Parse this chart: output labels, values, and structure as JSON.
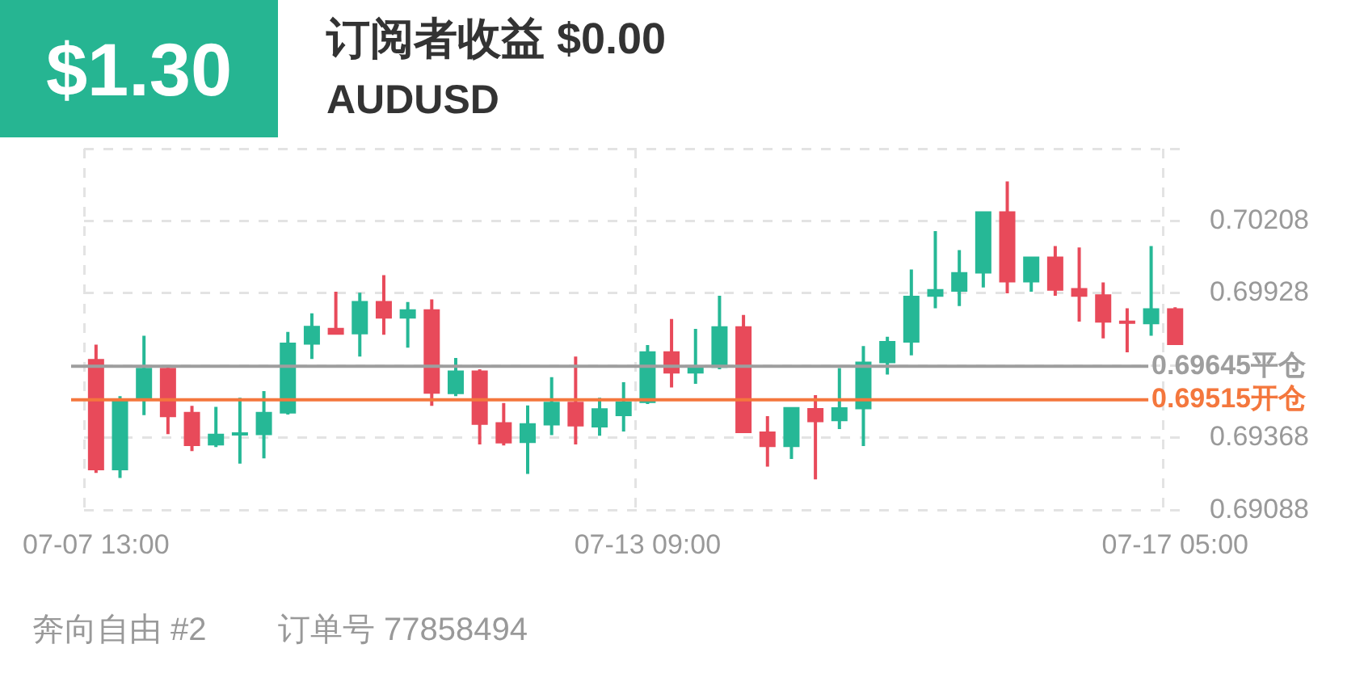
{
  "chart_data": {
    "type": "candlestick",
    "title": "订阅者收益 $0.00",
    "subtitle": "AUDUSD",
    "annotations": [
      "$1.30",
      "奔向自由 #2",
      "订单号 77858494"
    ],
    "categories": [
      "07-07 13:00",
      null,
      null,
      null,
      null,
      null,
      null,
      null,
      null,
      null,
      null,
      null,
      null,
      null,
      null,
      null,
      null,
      null,
      null,
      null,
      null,
      null,
      null,
      "07-13 09:00",
      null,
      null,
      null,
      null,
      null,
      null,
      null,
      null,
      null,
      null,
      null,
      null,
      null,
      null,
      null,
      null,
      null,
      null,
      null,
      null,
      null,
      "07-17 05:00"
    ],
    "ohlc": [
      [
        0.69673,
        0.69729,
        0.69232,
        0.69242
      ],
      [
        0.69242,
        0.69529,
        0.69212,
        0.69513
      ],
      [
        0.69513,
        0.69763,
        0.69456,
        0.69639
      ],
      [
        0.69639,
        0.69649,
        0.69382,
        0.69448
      ],
      [
        0.69468,
        0.69492,
        0.69316,
        0.69336
      ],
      [
        0.69338,
        0.69488,
        0.69332,
        0.69384
      ],
      [
        0.6938,
        0.69523,
        0.69268,
        0.69386
      ],
      [
        0.69378,
        0.69549,
        0.69288,
        0.69468
      ],
      [
        0.69462,
        0.69778,
        0.69458,
        0.69737
      ],
      [
        0.69729,
        0.6985,
        0.69673,
        0.69802
      ],
      [
        0.69794,
        0.69934,
        0.69767,
        0.69767
      ],
      [
        0.69769,
        0.6993,
        0.69683,
        0.69898
      ],
      [
        0.69898,
        0.69998,
        0.69767,
        0.6983
      ],
      [
        0.6983,
        0.69894,
        0.69717,
        0.69866
      ],
      [
        0.69866,
        0.69904,
        0.69492,
        0.69539
      ],
      [
        0.69537,
        0.69677,
        0.69529,
        0.69629
      ],
      [
        0.69629,
        0.69633,
        0.69342,
        0.69418
      ],
      [
        0.69428,
        0.69503,
        0.69338,
        0.69346
      ],
      [
        0.69348,
        0.69493,
        0.69228,
        0.69424
      ],
      [
        0.69416,
        0.69603,
        0.69378,
        0.69507
      ],
      [
        0.69507,
        0.69683,
        0.69342,
        0.69412
      ],
      [
        0.69408,
        0.69523,
        0.69376,
        0.69482
      ],
      [
        0.69452,
        0.69583,
        0.69392,
        0.69509
      ],
      [
        0.69503,
        0.69727,
        0.69499,
        0.69703
      ],
      [
        0.69703,
        0.69828,
        0.69563,
        0.69617
      ],
      [
        0.69617,
        0.6979,
        0.69577,
        0.69647
      ],
      [
        0.69639,
        0.69918,
        0.69633,
        0.698
      ],
      [
        0.698,
        0.69844,
        0.69386,
        0.69386
      ],
      [
        0.69392,
        0.69452,
        0.69256,
        0.69332
      ],
      [
        0.69332,
        0.69487,
        0.69286,
        0.69487
      ],
      [
        0.69483,
        0.69533,
        0.69207,
        0.69428
      ],
      [
        0.69432,
        0.69638,
        0.69402,
        0.69486
      ],
      [
        0.69478,
        0.69723,
        0.69336,
        0.69663
      ],
      [
        0.69657,
        0.69759,
        0.69613,
        0.69743
      ],
      [
        0.69737,
        0.7002,
        0.69687,
        0.69918
      ],
      [
        0.69914,
        0.70169,
        0.6987,
        0.69944
      ],
      [
        0.69934,
        0.70095,
        0.69878,
        0.7001
      ],
      [
        0.70004,
        0.70245,
        0.6995,
        0.70245
      ],
      [
        0.70245,
        0.70361,
        0.69928,
        0.6997
      ],
      [
        0.6997,
        0.7007,
        0.69934,
        0.7007
      ],
      [
        0.7007,
        0.70111,
        0.69918,
        0.69938
      ],
      [
        0.69948,
        0.70105,
        0.69818,
        0.69914
      ],
      [
        0.69924,
        0.6997,
        0.69753,
        0.69814
      ],
      [
        0.6982,
        0.6987,
        0.69699,
        0.69812
      ],
      [
        0.69808,
        0.70111,
        0.69763,
        0.6987
      ],
      [
        0.6987,
        0.69874,
        0.69727,
        0.69727
      ]
    ],
    "colors": [
      "#e84a5a",
      "#26b896",
      "#26b896",
      "#e84a5a",
      "#e84a5a",
      "#26b896",
      "#26b896",
      "#26b896",
      "#26b896",
      "#26b896",
      "#e84a5a",
      "#26b896",
      "#e84a5a",
      "#26b896",
      "#e84a5a",
      "#26b896",
      "#e84a5a",
      "#e84a5a",
      "#26b896",
      "#26b896",
      "#e84a5a",
      "#26b896",
      "#26b896",
      "#26b896",
      "#e84a5a",
      "#26b896",
      "#26b896",
      "#e84a5a",
      "#e84a5a",
      "#26b896",
      "#e84a5a",
      "#26b896",
      "#26b896",
      "#26b896",
      "#26b896",
      "#26b896",
      "#26b896",
      "#26b896",
      "#e84a5a",
      "#26b896",
      "#e84a5a",
      "#e84a5a",
      "#e84a5a",
      "#e84a5a",
      "#26b896",
      "#e84a5a"
    ],
    "ylim": [
      0.69088,
      0.70488
    ],
    "yticks": [
      0.69088,
      0.69368,
      {
        "value": 0.69648,
        "label": null
      },
      0.69928,
      0.70208,
      {
        "value": 0.70488,
        "label": null
      }
    ],
    "ref_lines": [
      {
        "axis": "y",
        "value": 0.69645,
        "label": "0.69645平仓",
        "color": "#9e9e9e"
      },
      {
        "axis": "y",
        "value": 0.69515,
        "label": "0.69515开仓",
        "color": "#f4773d"
      }
    ],
    "grid": true,
    "legend": false
  }
}
